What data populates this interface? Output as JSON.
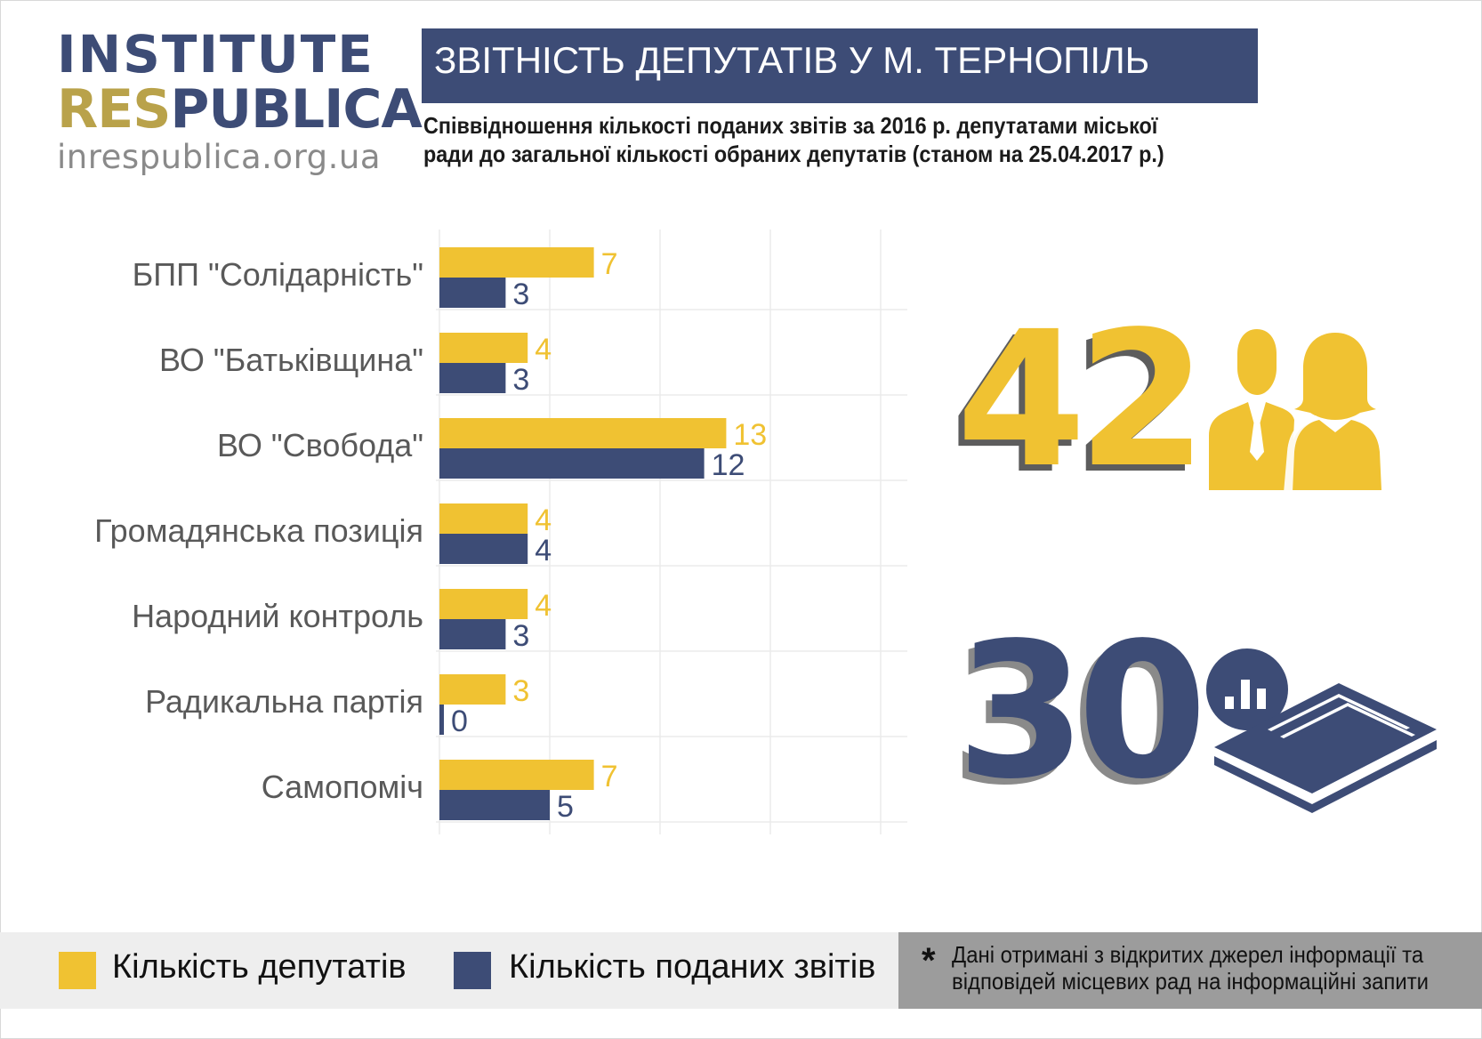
{
  "logo": {
    "line1": "INSTITUTE",
    "line2a": "RES",
    "line2b": "PUBLICA",
    "url": "inrespublica.org.ua"
  },
  "header": {
    "title": "ЗВІТНІСТЬ ДЕПУТАТІВ У М. ТЕРНОПІЛЬ",
    "subtitle": "Співвідношення кількості поданих звітів за 2016 р. депутатами міської ради до загальної кількості обраних депутатів (станом на 25.04.2017 р.)"
  },
  "chart_data": {
    "type": "bar",
    "orientation": "horizontal",
    "categories": [
      "БПП \"Солідарність\"",
      "ВО \"Батьківщина\"",
      "ВО \"Свобода\"",
      "Громадянська позиція",
      "Народний контроль",
      "Радикальна партія",
      "Самопоміч"
    ],
    "series": [
      {
        "name": "Кількість депутатів",
        "color": "#f0c232",
        "values": [
          7,
          4,
          13,
          4,
          4,
          3,
          7
        ]
      },
      {
        "name": "Кількість поданих звітів",
        "color": "#3d4c76",
        "values": [
          3,
          3,
          12,
          4,
          3,
          0,
          5
        ]
      }
    ],
    "xlim": [
      0,
      20
    ],
    "grid": true,
    "legend": "bottom"
  },
  "summary": {
    "total_deputies": "42",
    "total_reports": "30",
    "deputies_icon": "people-icon",
    "reports_icon": "report-documents-icon"
  },
  "legend": {
    "deputies": "Кількість депутатів",
    "reports": "Кількість поданих звітів"
  },
  "note": {
    "star": "*",
    "text": "Дані отримані з відкритих джерел інформації та відповідей місцевих рад на інформаційні запити"
  },
  "colors": {
    "accent_yellow": "#f0c232",
    "accent_blue": "#3d4c76"
  }
}
